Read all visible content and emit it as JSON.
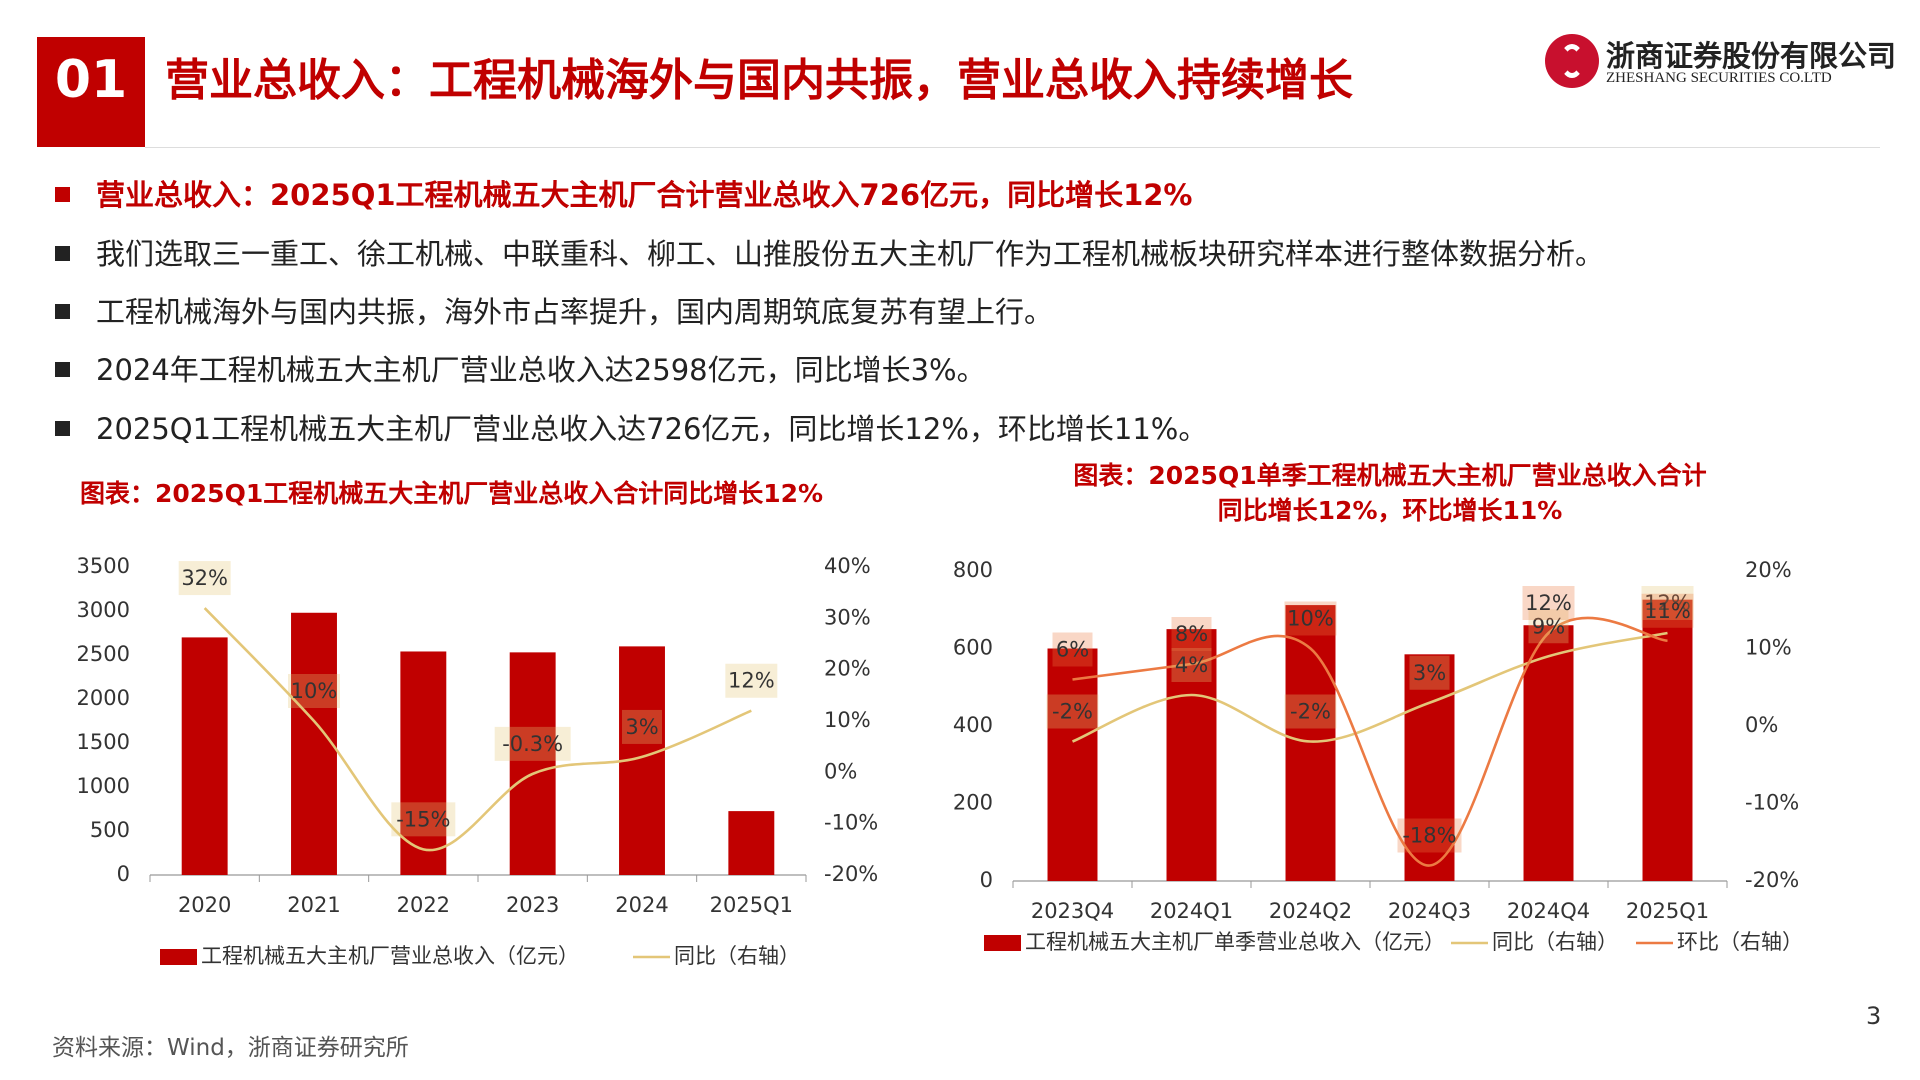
{
  "header": {
    "number": "01",
    "title": "营业总收入：工程机械海外与国内共振，营业总收入持续增长",
    "company_cn": "浙商证券股份有限公司",
    "company_en": "ZHESHANG SECURITIES CO.LTD"
  },
  "bullets": [
    "营业总收入：2025Q1工程机械五大主机厂合计营业总收入726亿元，同比增长12%",
    "我们选取三一重工、徐工机械、中联重科、柳工、山推股份五大主机厂作为工程机械板块研究样本进行整体数据分析。",
    "工程机械海外与国内共振，海外市占率提升，国内周期筑底复苏有望上行。",
    "2024年工程机械五大主机厂营业总收入达2598亿元，同比增长3%。",
    "2025Q1工程机械五大主机厂营业总收入达726亿元，同比增长12%，环比增长11%。"
  ],
  "chart_data": [
    {
      "type": "combo",
      "title": [
        "图表：2025Q1工程机械五大主机厂营业总收入合计同比增长12%"
      ],
      "categories": [
        "2020",
        "2021",
        "2022",
        "2023",
        "2024",
        "2025Q1"
      ],
      "series": [
        {
          "name": "工程机械五大主机厂营业总收入（亿元）",
          "type": "bar",
          "color": "#c00000",
          "values": [
            2700,
            2980,
            2540,
            2530,
            2598,
            726
          ]
        },
        {
          "name": "同比（右轴）",
          "type": "line",
          "axis": "y2",
          "color": "#e3c678",
          "values": [
            32,
            10,
            -15,
            -0.3,
            3,
            12
          ],
          "value_labels": [
            "32%",
            "10%",
            "-15%",
            "-0.3%",
            "3%",
            "12%"
          ]
        }
      ],
      "ylim": [
        0,
        3500
      ],
      "yticks": [
        0,
        500,
        1000,
        1500,
        2000,
        2500,
        3000,
        3500
      ],
      "y2lim": [
        -20,
        40
      ],
      "y2ticks": [
        {
          "value": -20,
          "label": "-20%"
        },
        {
          "value": -10,
          "label": "-10%"
        },
        {
          "value": 0,
          "label": "0%"
        },
        {
          "value": 10,
          "label": "10%"
        },
        {
          "value": 20,
          "label": "20%"
        },
        {
          "value": 30,
          "label": "30%"
        },
        {
          "value": 40,
          "label": "40%"
        }
      ]
    },
    {
      "type": "combo",
      "title": [
        "图表：2025Q1单季工程机械五大主机厂营业总收入合计",
        "同比增长12%，环比增长11%"
      ],
      "categories": [
        "2023Q4",
        "2024Q1",
        "2024Q2",
        "2024Q3",
        "2024Q4",
        "2025Q1"
      ],
      "series": [
        {
          "name": "工程机械五大主机厂单季营业总收入（亿元）",
          "type": "bar",
          "color": "#c00000",
          "values": [
            600,
            650,
            712,
            585,
            660,
            726
          ]
        },
        {
          "name": "同比（右轴）",
          "type": "line",
          "axis": "y2",
          "color": "#e3c678",
          "values": [
            -2,
            4,
            -2,
            3,
            9,
            12
          ],
          "value_labels": [
            "-2%",
            "4%",
            "-2%",
            "3%",
            "9%",
            "12%"
          ]
        },
        {
          "name": "环比（右轴）",
          "type": "line",
          "axis": "y2",
          "color": "#ec7a43",
          "values": [
            6,
            8,
            10,
            -18,
            12,
            11
          ],
          "value_labels": [
            "6%",
            "8%",
            "10%",
            "-18%",
            "12%",
            "11%"
          ]
        }
      ],
      "ylim": [
        0,
        800
      ],
      "yticks": [
        0,
        200,
        400,
        600,
        800
      ],
      "y2lim": [
        -20,
        20
      ],
      "y2ticks": [
        {
          "value": -20,
          "label": "-20%"
        },
        {
          "value": -10,
          "label": "-10%"
        },
        {
          "value": 0,
          "label": "0%"
        },
        {
          "value": 10,
          "label": "10%"
        },
        {
          "value": 20,
          "label": "20%"
        }
      ]
    }
  ],
  "source": "资料来源：Wind，浙商证券研究所",
  "page_number": 3
}
